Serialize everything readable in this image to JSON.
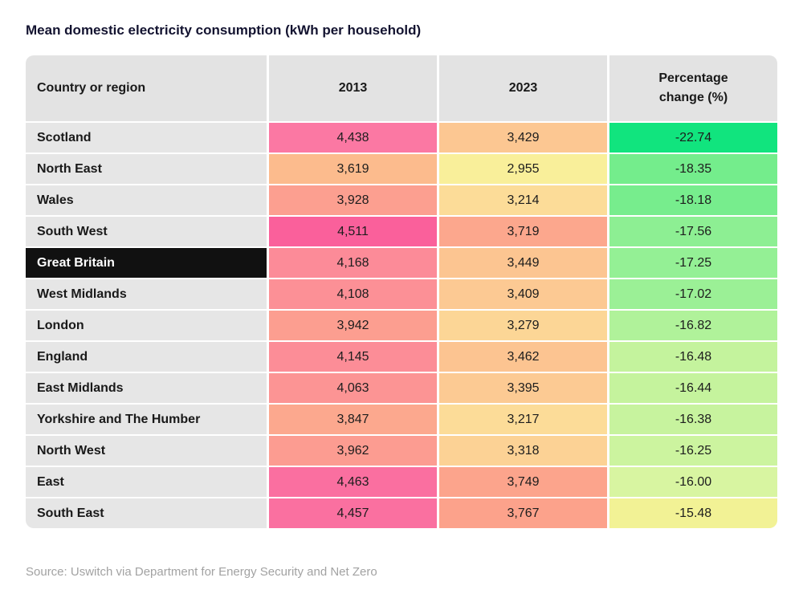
{
  "title": "Mean domestic electricity consumption (kWh per household)",
  "source": "Source: Uswitch via Department for Energy Security and Net Zero",
  "colors": {
    "header_bg": "#e3e3e3",
    "label_bg": "#e6e6e6",
    "highlight_bg": "#111111",
    "highlight_text": "#ffffff",
    "title_text": "#131330",
    "source_text": "#a2a2a2"
  },
  "table": {
    "columns": [
      "Country or region",
      "2013",
      "2023",
      "Percentage change (%)"
    ],
    "rows": [
      {
        "region": "Scotland",
        "v2013": "4,438",
        "v2023": "3,429",
        "pct": "-22.74",
        "c2013": "#fb78a3",
        "c2023": "#fcc792",
        "cpct": "#11e47e",
        "highlight": false
      },
      {
        "region": "North East",
        "v2013": "3,619",
        "v2023": "2,955",
        "pct": "-18.35",
        "c2013": "#fcbb8d",
        "c2023": "#f9ef9a",
        "cpct": "#74ed8c",
        "highlight": false
      },
      {
        "region": "Wales",
        "v2013": "3,928",
        "v2023": "3,214",
        "pct": "-18.18",
        "c2013": "#fc9f90",
        "c2023": "#fcdc98",
        "cpct": "#77ed8d",
        "highlight": false
      },
      {
        "region": "South West",
        "v2013": "4,511",
        "v2023": "3,719",
        "pct": "-17.56",
        "c2013": "#fa609b",
        "c2023": "#fca78d",
        "cpct": "#8def93",
        "highlight": false
      },
      {
        "region": "Great Britain",
        "v2013": "4,168",
        "v2023": "3,449",
        "pct": "-17.25",
        "c2013": "#fc8b98",
        "c2023": "#fcc591",
        "cpct": "#94f095",
        "highlight": true
      },
      {
        "region": "West Midlands",
        "v2013": "4,108",
        "v2023": "3,409",
        "pct": "-17.02",
        "c2013": "#fc9096",
        "c2023": "#fcc993",
        "cpct": "#9bf096",
        "highlight": false
      },
      {
        "region": "London",
        "v2013": "3,942",
        "v2023": "3,279",
        "pct": "-16.82",
        "c2013": "#fc9e90",
        "c2023": "#fcd696",
        "cpct": "#b0f29a",
        "highlight": false
      },
      {
        "region": "England",
        "v2013": "4,145",
        "v2023": "3,462",
        "pct": "-16.48",
        "c2013": "#fc8d97",
        "c2023": "#fcc491",
        "cpct": "#c4f39d",
        "highlight": false
      },
      {
        "region": "East Midlands",
        "v2013": "4,063",
        "v2023": "3,395",
        "pct": "-16.44",
        "c2013": "#fc9494",
        "c2023": "#fcca93",
        "cpct": "#c5f39d",
        "highlight": false
      },
      {
        "region": "Yorkshire and The Humber",
        "v2013": "3,847",
        "v2023": "3,217",
        "pct": "-16.38",
        "c2013": "#fca88e",
        "c2023": "#fcdc98",
        "cpct": "#c7f39e",
        "highlight": false
      },
      {
        "region": "North West",
        "v2013": "3,962",
        "v2023": "3,318",
        "pct": "-16.25",
        "c2013": "#fc9c91",
        "c2023": "#fcd295",
        "cpct": "#ccf49f",
        "highlight": false
      },
      {
        "region": "East",
        "v2013": "4,463",
        "v2023": "3,749",
        "pct": "-16.00",
        "c2013": "#fa6fa0",
        "c2023": "#fca48c",
        "cpct": "#d8f5a1",
        "highlight": false
      },
      {
        "region": "South East",
        "v2013": "4,457",
        "v2023": "3,767",
        "pct": "-15.48",
        "c2013": "#fa70a0",
        "c2023": "#fca28b",
        "cpct": "#f2f295",
        "highlight": false
      }
    ]
  },
  "chart_data": {
    "type": "table",
    "title": "Mean domestic electricity consumption (kWh per household)",
    "columns": [
      "Country or region",
      "2013",
      "2023",
      "Percentage change (%)"
    ],
    "rows": [
      [
        "Scotland",
        4438,
        3429,
        -22.74
      ],
      [
        "North East",
        3619,
        2955,
        -18.35
      ],
      [
        "Wales",
        3928,
        3214,
        -18.18
      ],
      [
        "South West",
        4511,
        3719,
        -17.56
      ],
      [
        "Great Britain",
        4168,
        3449,
        -17.25
      ],
      [
        "West Midlands",
        4108,
        3409,
        -17.02
      ],
      [
        "London",
        3942,
        3279,
        -16.82
      ],
      [
        "England",
        4145,
        3462,
        -16.48
      ],
      [
        "East Midlands",
        4063,
        3395,
        -16.44
      ],
      [
        "Yorkshire and The Humber",
        3847,
        3217,
        -16.38
      ],
      [
        "North West",
        3962,
        3318,
        -16.25
      ],
      [
        "East",
        4463,
        3749,
        -16.0
      ],
      [
        "South East",
        4457,
        3767,
        -15.48
      ]
    ],
    "highlighted_row": "Great Britain",
    "legend_position": "none",
    "color_encoding": "red-yellow-green heatmap per value: higher kWh = pink/red, lower kWh = yellow; larger percentage decrease = brighter green",
    "source": "Source: Uswitch via Department for Energy Security and Net Zero"
  }
}
